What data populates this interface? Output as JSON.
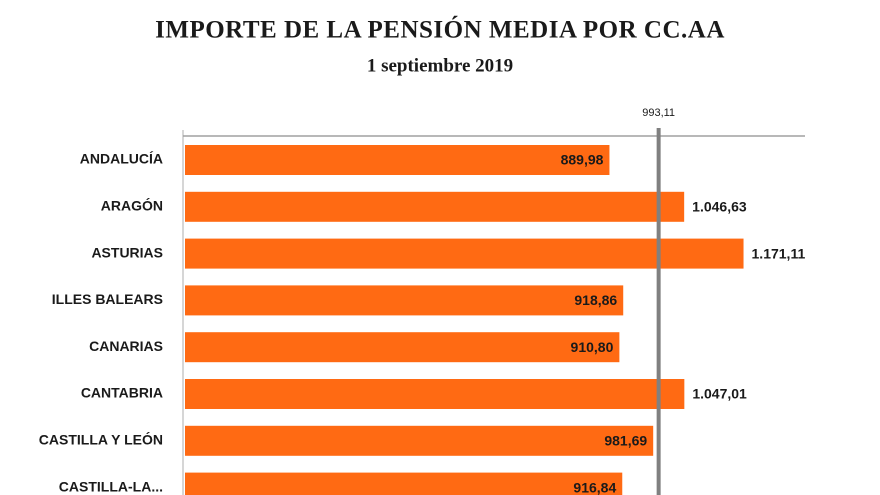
{
  "chart_data": {
    "type": "bar",
    "orientation": "horizontal",
    "title": "IMPORTE DE LA PENSIÓN MEDIA POR CC.AA",
    "subtitle": "1 septiembre  2019",
    "categories": [
      "ANDALUCÍA",
      "ARAGÓN",
      "ASTURIAS",
      "ILLES BALEARS",
      "CANARIAS",
      "CANTABRIA",
      "CASTILLA Y LEÓN",
      "CASTILLA-LA..."
    ],
    "values": [
      889.98,
      1046.63,
      1171.11,
      918.86,
      910.8,
      1047.01,
      981.69,
      916.84
    ],
    "value_labels": [
      "889,98",
      "1.046,63",
      "1.171,11",
      "918,86",
      "910,80",
      "1.047,01",
      "981,69",
      "916,84"
    ],
    "color": "#ff6a13",
    "xlim": [
      0,
      1300
    ],
    "reference_line": {
      "value": 993.11,
      "label": "993,11",
      "color": "#808080"
    }
  }
}
